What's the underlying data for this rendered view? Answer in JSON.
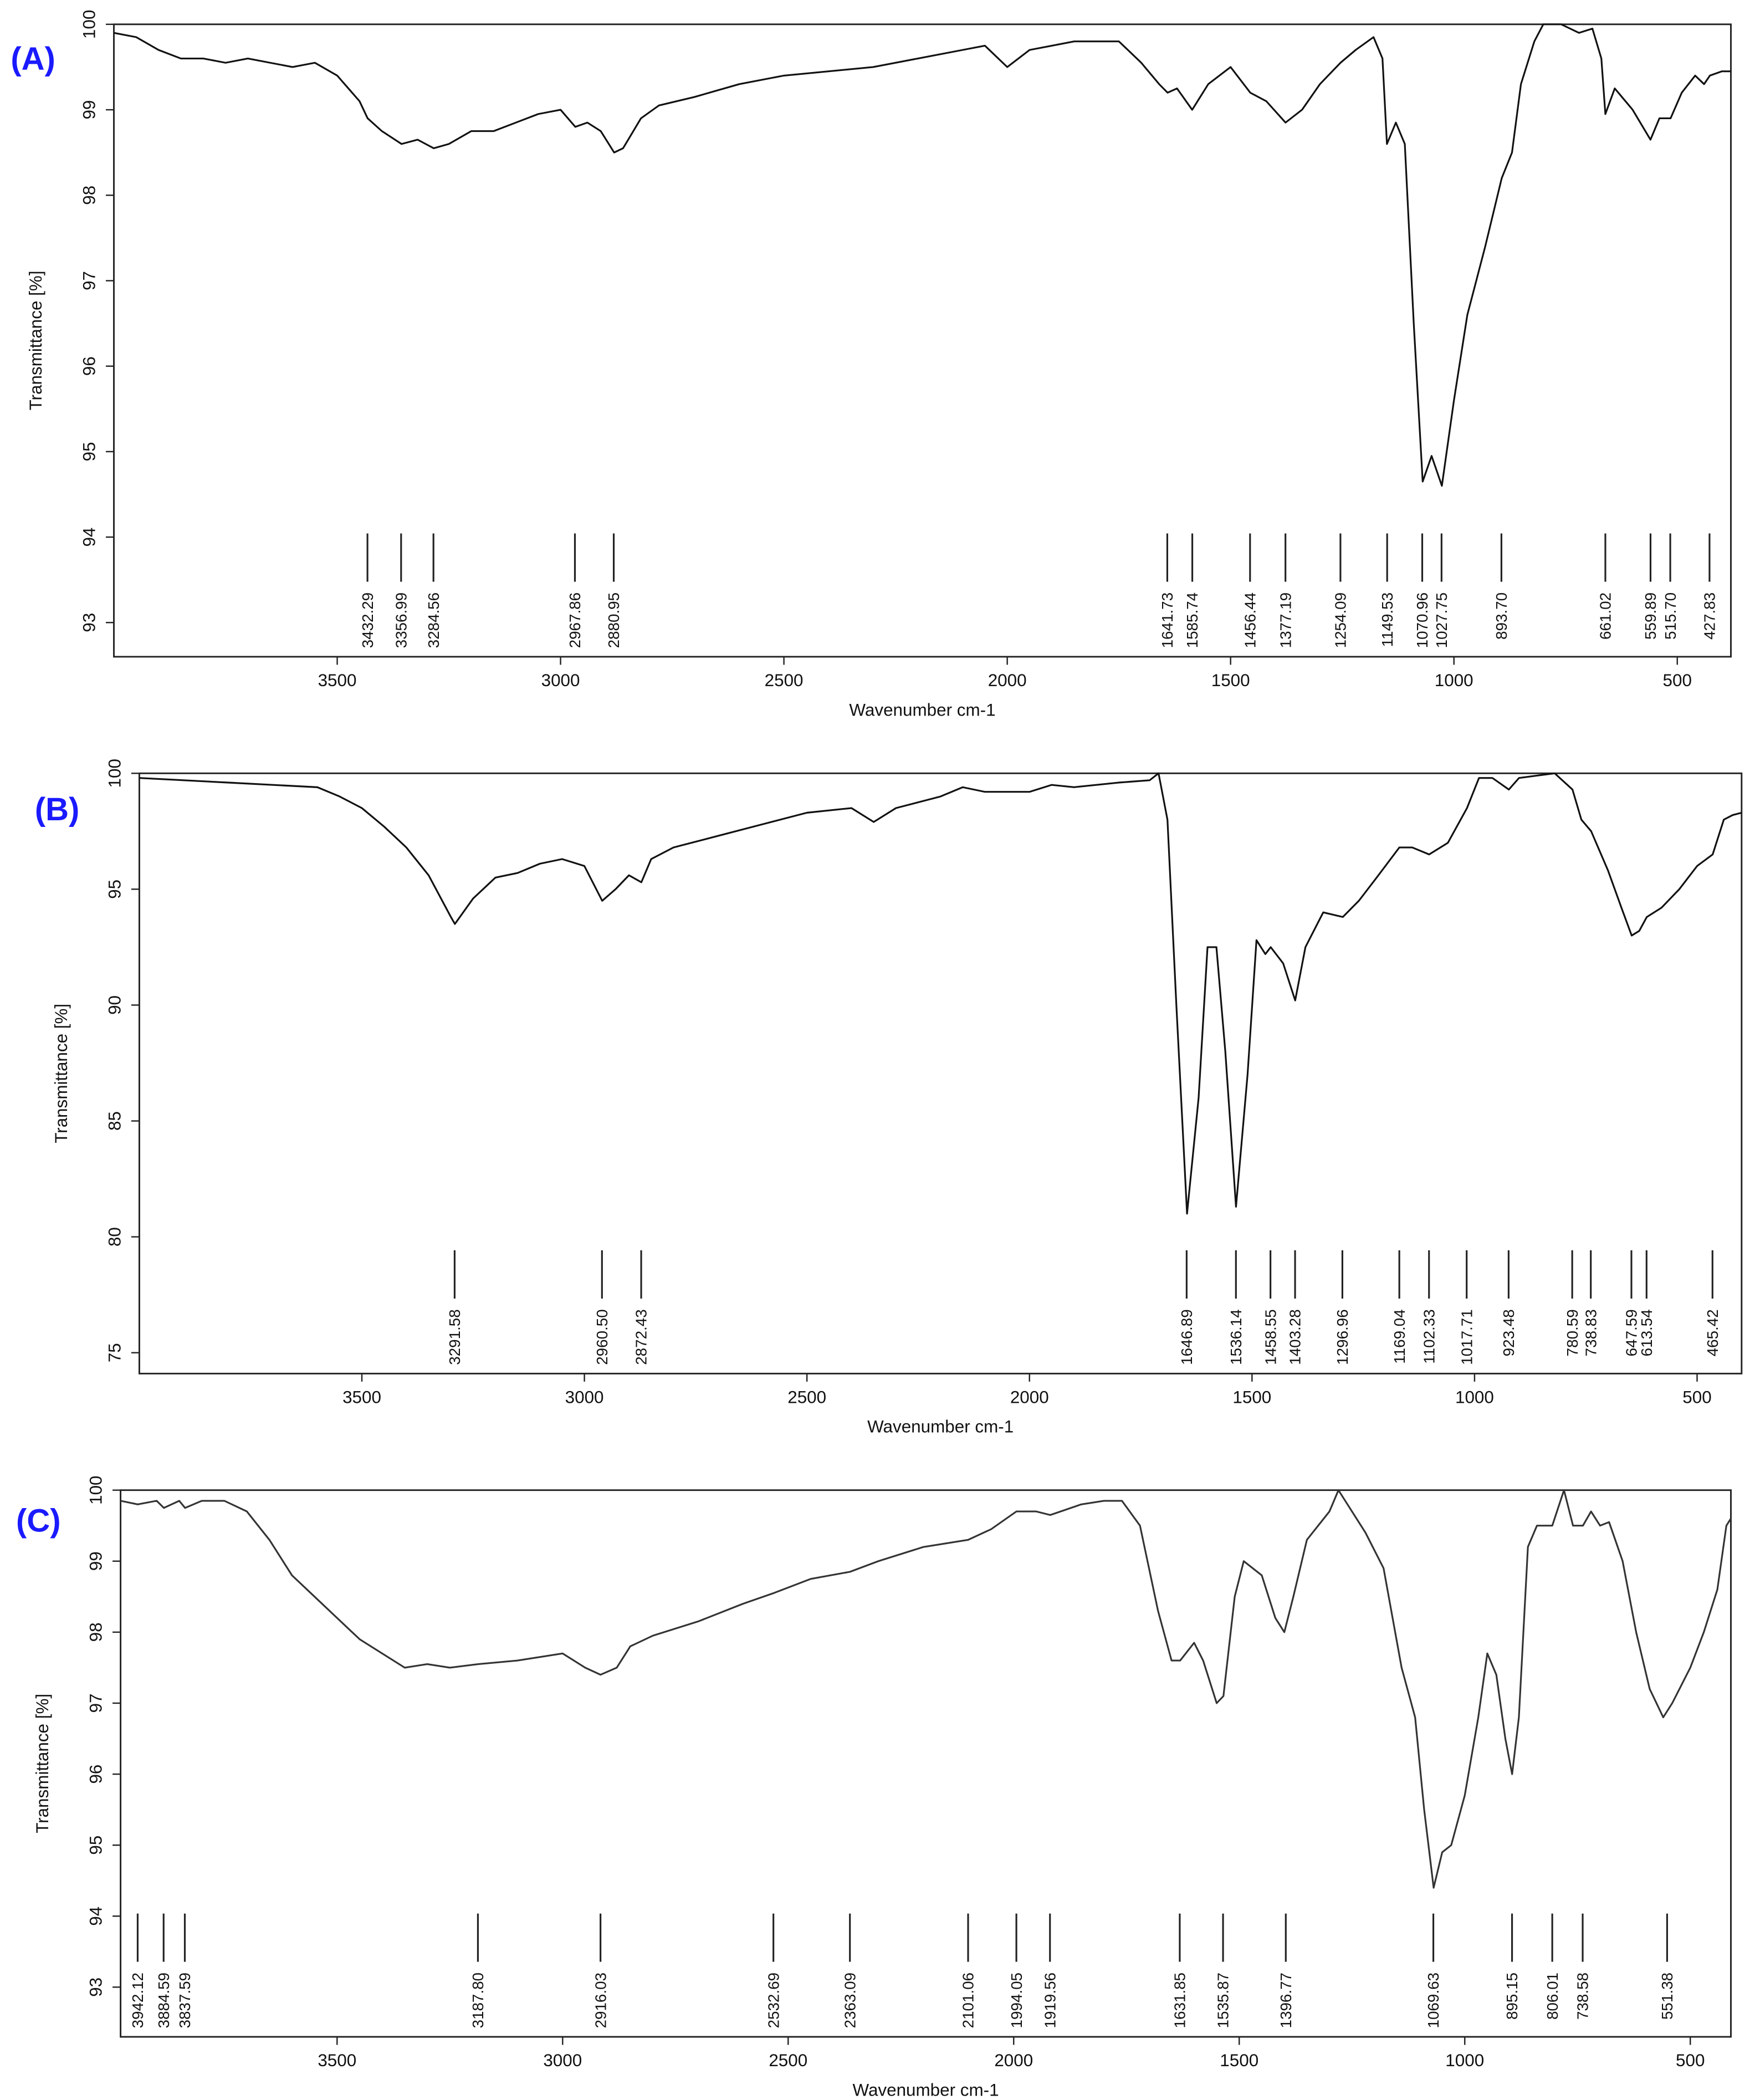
{
  "chart_data": [
    {
      "type": "line",
      "panel_label": "(A)",
      "xlabel": "Wavenumber cm-1",
      "ylabel": "Transmittance [%]",
      "color": "#111111",
      "xlim": [
        4000,
        380
      ],
      "ylim": [
        92.6,
        100
      ],
      "xticks": [
        3500,
        3000,
        2500,
        2000,
        1500,
        1000,
        500
      ],
      "yticks": [
        93,
        94,
        95,
        96,
        97,
        98,
        99,
        100
      ],
      "x": [
        4000,
        3950,
        3900,
        3850,
        3800,
        3750,
        3700,
        3650,
        3600,
        3550,
        3500,
        3450,
        3432,
        3400,
        3356,
        3320,
        3284,
        3250,
        3200,
        3150,
        3100,
        3050,
        3000,
        2967,
        2940,
        2910,
        2880,
        2860,
        2820,
        2780,
        2700,
        2600,
        2500,
        2400,
        2300,
        2200,
        2100,
        2050,
        2000,
        1950,
        1900,
        1850,
        1800,
        1750,
        1700,
        1660,
        1641,
        1620,
        1586,
        1550,
        1500,
        1456,
        1420,
        1377,
        1340,
        1300,
        1254,
        1220,
        1180,
        1160,
        1150,
        1130,
        1110,
        1090,
        1070,
        1050,
        1027,
        1000,
        970,
        930,
        893,
        870,
        850,
        820,
        800,
        760,
        720,
        690,
        670,
        661,
        640,
        600,
        560,
        540,
        515,
        490,
        460,
        440,
        427,
        400,
        380
      ],
      "values": [
        99.9,
        99.85,
        99.7,
        99.6,
        99.6,
        99.55,
        99.6,
        99.55,
        99.5,
        99.55,
        99.4,
        99.1,
        98.9,
        98.75,
        98.6,
        98.65,
        98.55,
        98.6,
        98.75,
        98.75,
        98.85,
        98.95,
        99.0,
        98.8,
        98.85,
        98.75,
        98.5,
        98.55,
        98.9,
        99.05,
        99.15,
        99.3,
        99.4,
        99.45,
        99.5,
        99.6,
        99.7,
        99.75,
        99.5,
        99.7,
        99.75,
        99.8,
        99.8,
        99.8,
        99.55,
        99.3,
        99.2,
        99.25,
        99.0,
        99.3,
        99.5,
        99.2,
        99.1,
        98.85,
        99.0,
        99.3,
        99.55,
        99.7,
        99.85,
        99.6,
        98.6,
        98.85,
        98.6,
        96.5,
        94.65,
        94.95,
        94.6,
        95.6,
        96.6,
        97.4,
        98.2,
        98.5,
        99.3,
        99.8,
        100,
        100,
        99.9,
        99.95,
        99.6,
        98.95,
        99.25,
        99.0,
        98.65,
        98.9,
        98.9,
        99.2,
        99.4,
        99.3,
        99.4,
        99.45,
        99.45
      ],
      "peaks": [
        3432.29,
        3356.99,
        3284.56,
        2967.86,
        2880.95,
        1641.73,
        1585.74,
        1456.44,
        1377.19,
        1254.09,
        1149.53,
        1070.96,
        1027.75,
        {
          "value": 893.7,
          "label": "893.70"
        },
        661.02,
        559.89,
        {
          "value": 515.7,
          "label": "515.70"
        },
        427.83
      ]
    },
    {
      "type": "line",
      "panel_label": "(B)",
      "xlabel": "Wavenumber cm-1",
      "ylabel": "Transmittance [%]",
      "color": "#111111",
      "xlim": [
        4000,
        400
      ],
      "ylim": [
        74.1,
        100
      ],
      "xticks": [
        3500,
        3000,
        2500,
        2000,
        1500,
        1000,
        500
      ],
      "yticks": [
        75,
        80,
        85,
        90,
        95,
        100
      ],
      "x": [
        4000,
        3900,
        3800,
        3700,
        3600,
        3550,
        3500,
        3450,
        3400,
        3350,
        3300,
        3291,
        3250,
        3200,
        3150,
        3100,
        3050,
        3000,
        2960,
        2930,
        2900,
        2872,
        2850,
        2800,
        2700,
        2600,
        2500,
        2400,
        2350,
        2300,
        2200,
        2150,
        2100,
        2000,
        1950,
        1900,
        1800,
        1730,
        1710,
        1690,
        1670,
        1646,
        1620,
        1600,
        1580,
        1560,
        1536,
        1510,
        1490,
        1470,
        1458,
        1430,
        1403,
        1380,
        1340,
        1296,
        1260,
        1220,
        1169,
        1140,
        1102,
        1060,
        1017,
        990,
        960,
        923,
        900,
        860,
        820,
        780,
        760,
        738,
        700,
        670,
        647,
        630,
        613,
        580,
        540,
        500,
        465,
        440,
        420,
        400
      ],
      "values": [
        99.8,
        99.7,
        99.6,
        99.5,
        99.4,
        99.0,
        98.5,
        97.7,
        96.8,
        95.6,
        93.8,
        93.5,
        94.6,
        95.5,
        95.7,
        96.1,
        96.3,
        96.0,
        94.5,
        95.0,
        95.6,
        95.3,
        96.3,
        96.8,
        97.3,
        97.8,
        98.3,
        98.5,
        97.9,
        98.5,
        99.0,
        99.4,
        99.2,
        99.2,
        99.5,
        99.4,
        99.6,
        99.7,
        100,
        98,
        90,
        81,
        86,
        92.5,
        92.5,
        88,
        81.3,
        87,
        92.8,
        92.2,
        92.5,
        91.8,
        90.2,
        92.5,
        94.0,
        93.8,
        94.5,
        95.5,
        96.8,
        96.8,
        96.5,
        97.0,
        98.5,
        99.8,
        99.8,
        99.3,
        99.8,
        99.9,
        100,
        99.3,
        98,
        97.5,
        95.8,
        94.2,
        93.0,
        93.2,
        93.8,
        94.2,
        95.0,
        96.0,
        96.5,
        98.0,
        98.2,
        98.3
      ],
      "peaks": [
        3291.58,
        {
          "value": 2960.5,
          "label": "2960.50"
        },
        2872.43,
        1646.89,
        1536.14,
        1458.55,
        1403.28,
        1296.96,
        1169.04,
        1102.33,
        1017.71,
        923.48,
        780.59,
        738.83,
        647.59,
        613.54,
        465.42
      ]
    },
    {
      "type": "line",
      "panel_label": "(C)",
      "xlabel": "Wavenumber cm-1",
      "ylabel": "Transmittance [%]",
      "color": "#333333",
      "xlim": [
        3980,
        410
      ],
      "ylim": [
        92.3,
        100
      ],
      "xticks": [
        3500,
        3000,
        2500,
        2000,
        1500,
        1000,
        500
      ],
      "yticks": [
        93,
        94,
        95,
        96,
        97,
        98,
        99,
        100
      ],
      "x": [
        3980,
        3942,
        3900,
        3884,
        3850,
        3837,
        3800,
        3750,
        3700,
        3650,
        3600,
        3550,
        3500,
        3450,
        3400,
        3350,
        3300,
        3250,
        3187,
        3100,
        3050,
        3000,
        2950,
        2916,
        2880,
        2850,
        2800,
        2700,
        2600,
        2532,
        2450,
        2363,
        2300,
        2200,
        2101,
        2050,
        1994,
        1950,
        1919,
        1850,
        1800,
        1760,
        1720,
        1680,
        1650,
        1631,
        1600,
        1580,
        1550,
        1535,
        1510,
        1490,
        1450,
        1420,
        1400,
        1380,
        1350,
        1300,
        1280,
        1260,
        1220,
        1180,
        1140,
        1110,
        1090,
        1069,
        1050,
        1030,
        1000,
        970,
        950,
        930,
        910,
        895,
        880,
        860,
        840,
        806,
        780,
        760,
        738,
        720,
        700,
        680,
        650,
        620,
        590,
        560,
        540,
        500,
        470,
        440,
        420,
        410
      ],
      "values": [
        99.85,
        99.8,
        99.85,
        99.75,
        99.85,
        99.75,
        99.85,
        99.85,
        99.7,
        99.3,
        98.8,
        98.5,
        98.2,
        97.9,
        97.7,
        97.5,
        97.55,
        97.5,
        97.55,
        97.6,
        97.65,
        97.7,
        97.5,
        97.4,
        97.5,
        97.8,
        97.95,
        98.15,
        98.4,
        98.55,
        98.75,
        98.85,
        99.0,
        99.2,
        99.3,
        99.45,
        99.7,
        99.7,
        99.65,
        99.8,
        99.85,
        99.85,
        99.5,
        98.3,
        97.6,
        97.6,
        97.85,
        97.6,
        97.0,
        97.1,
        98.5,
        99.0,
        98.8,
        98.2,
        98.0,
        98.5,
        99.3,
        99.7,
        100,
        99.8,
        99.4,
        98.9,
        97.5,
        96.8,
        95.5,
        94.4,
        94.9,
        95.0,
        95.7,
        96.8,
        97.7,
        97.4,
        96.5,
        96.0,
        96.8,
        99.2,
        99.5,
        99.5,
        100,
        99.5,
        99.5,
        99.7,
        99.5,
        99.55,
        99.0,
        98.0,
        97.2,
        96.8,
        97.0,
        97.5,
        98.0,
        98.6,
        99.5,
        99.6
      ],
      "peaks": [
        3942.12,
        3884.59,
        3837.59,
        {
          "value": 3187.8,
          "label": "3187.80"
        },
        2916.03,
        2532.69,
        2363.09,
        2101.06,
        1994.05,
        1919.56,
        1631.85,
        1535.87,
        1396.77,
        1069.63,
        895.15,
        806.01,
        738.58,
        551.38
      ]
    }
  ]
}
